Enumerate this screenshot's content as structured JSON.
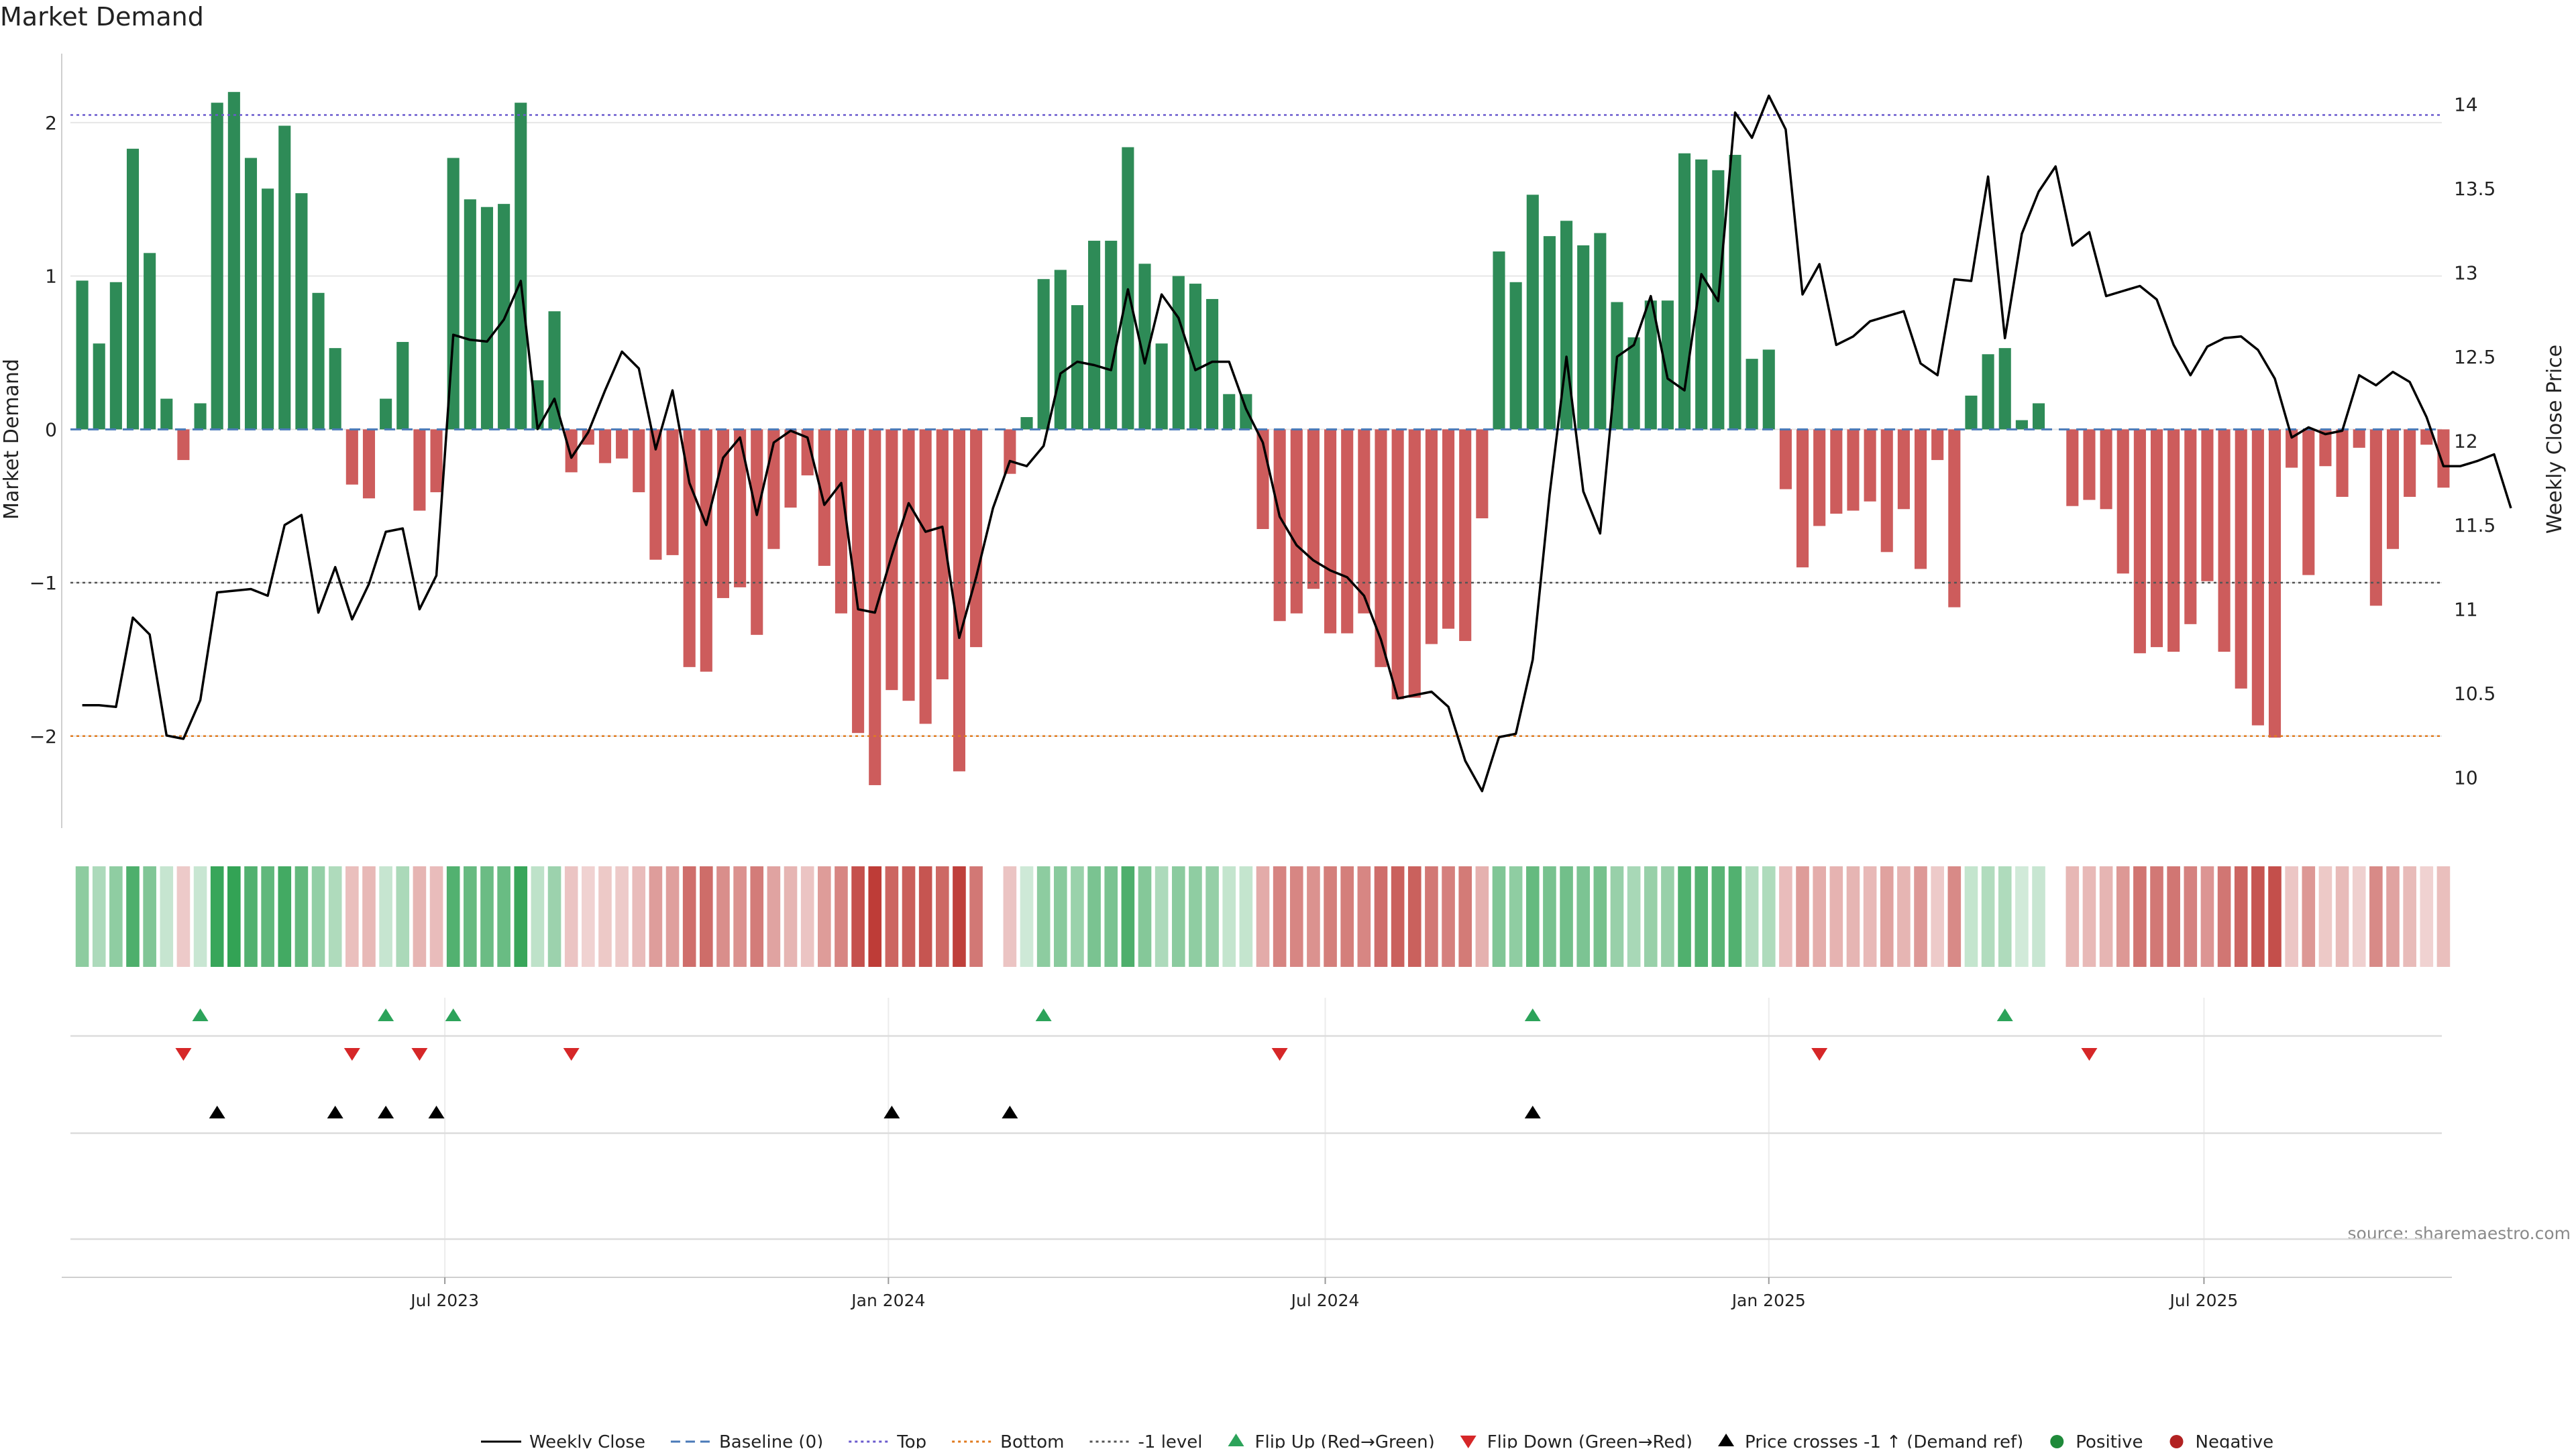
{
  "chart_data": {
    "type": "bar",
    "title": "Market Demand",
    "ylabel_left": "Market Demand",
    "ylabel_right": "Weekly Close Price",
    "ylim_left": [
      -2.6,
      2.45
    ],
    "ylim_right": [
      9.7,
      14.3
    ],
    "yticks_left": [
      {
        "v": 2,
        "label": "2"
      },
      {
        "v": 1,
        "label": "1"
      },
      {
        "v": 0,
        "label": "0"
      },
      {
        "v": -1,
        "label": "−1"
      },
      {
        "v": -2,
        "label": "−2"
      }
    ],
    "yticks_right": [
      {
        "v": 14,
        "label": "14"
      },
      {
        "v": 13.5,
        "label": "13.5"
      },
      {
        "v": 13,
        "label": "13"
      },
      {
        "v": 12.5,
        "label": "12.5"
      },
      {
        "v": 12,
        "label": "12"
      },
      {
        "v": 11.5,
        "label": "11.5"
      },
      {
        "v": 11,
        "label": "11"
      },
      {
        "v": 10.5,
        "label": "10.5"
      },
      {
        "v": 10,
        "label": "10"
      }
    ],
    "xticks": [
      {
        "week": 22,
        "label": "Jul 2023"
      },
      {
        "week": 48.3,
        "label": "Jan 2024"
      },
      {
        "week": 74.2,
        "label": "Jul 2024"
      },
      {
        "week": 100.5,
        "label": "Jan 2025"
      },
      {
        "week": 126.3,
        "label": "Jul 2025"
      }
    ],
    "reference_lines": {
      "top": 2.05,
      "bottom": -2.0,
      "minus_one": -1.0,
      "baseline": 0
    },
    "demand": [
      0.97,
      0.56,
      0.96,
      1.83,
      1.15,
      0.2,
      -0.2,
      0.17,
      2.13,
      2.2,
      1.77,
      1.57,
      1.98,
      1.54,
      0.89,
      0.53,
      -0.36,
      -0.45,
      0.2,
      0.57,
      -0.53,
      -0.41,
      1.77,
      1.5,
      1.45,
      1.47,
      2.13,
      0.32,
      0.77,
      -0.28,
      -0.1,
      -0.22,
      -0.19,
      -0.41,
      -0.85,
      -0.82,
      -1.55,
      -1.58,
      -1.1,
      -1.03,
      -1.34,
      -0.78,
      -0.51,
      -0.3,
      -0.89,
      -1.2,
      -1.98,
      -2.32,
      -1.7,
      -1.77,
      -1.92,
      -1.63,
      -2.23,
      -1.42,
      0.0,
      -0.29,
      0.08,
      0.98,
      1.04,
      0.81,
      1.23,
      1.23,
      1.84,
      1.08,
      0.56,
      1.0,
      0.95,
      0.85,
      0.23,
      0.23,
      -0.65,
      -1.25,
      -1.2,
      -1.04,
      -1.33,
      -1.33,
      -1.2,
      -1.55,
      -1.76,
      -1.75,
      -1.4,
      -1.3,
      -1.38,
      -0.58,
      1.16,
      0.96,
      1.53,
      1.26,
      1.36,
      1.2,
      1.28,
      0.83,
      0.6,
      0.84,
      0.84,
      1.8,
      1.76,
      1.69,
      1.79,
      0.46,
      0.52,
      -0.39,
      -0.9,
      -0.63,
      -0.55,
      -0.53,
      -0.47,
      -0.8,
      -0.52,
      -0.91,
      -0.2,
      -1.16,
      0.22,
      0.49,
      0.53,
      0.06,
      0.17,
      0.0,
      -0.5,
      -0.46,
      -0.52,
      -0.94,
      -1.46,
      -1.42,
      -1.45,
      -1.27,
      -0.99,
      -1.45,
      -1.69,
      -1.93,
      -2.01,
      -0.25,
      -0.95,
      -0.24,
      -0.44,
      -0.12,
      -1.15,
      -0.78,
      -0.44,
      -0.1,
      -0.38
    ],
    "weekly_close": [
      10.43,
      10.43,
      10.42,
      10.95,
      10.85,
      10.25,
      10.23,
      10.46,
      11.1,
      11.11,
      11.12,
      11.08,
      11.5,
      11.56,
      10.98,
      11.25,
      10.94,
      11.15,
      11.46,
      11.48,
      11.0,
      11.2,
      12.63,
      12.6,
      12.59,
      12.72,
      12.95,
      12.07,
      12.25,
      11.9,
      12.05,
      12.3,
      12.53,
      12.43,
      11.95,
      12.3,
      11.75,
      11.5,
      11.9,
      12.02,
      11.56,
      11.99,
      12.06,
      12.02,
      11.62,
      11.75,
      11.0,
      10.98,
      11.32,
      11.63,
      11.46,
      11.49,
      10.83,
      11.19,
      11.6,
      11.88,
      11.85,
      11.97,
      12.4,
      12.47,
      12.45,
      12.42,
      12.9,
      12.46,
      12.87,
      12.73,
      12.42,
      12.47,
      12.47,
      12.19,
      11.99,
      11.55,
      11.38,
      11.29,
      11.23,
      11.19,
      11.08,
      10.82,
      10.47,
      10.49,
      10.51,
      10.42,
      10.1,
      9.92,
      10.24,
      10.26,
      10.7,
      11.68,
      12.5,
      11.7,
      11.45,
      12.5,
      12.57,
      12.86,
      12.37,
      12.3,
      12.99,
      12.83,
      13.95,
      13.8,
      14.05,
      13.85,
      12.87,
      13.05,
      12.57,
      12.62,
      12.71,
      12.74,
      12.77,
      12.46,
      12.39,
      12.96,
      12.95,
      13.57,
      12.61,
      13.23,
      13.48,
      13.63,
      13.16,
      13.24,
      12.86,
      12.89,
      12.92,
      12.84,
      12.57,
      12.39,
      12.56,
      12.61,
      12.62,
      12.54,
      12.37,
      12.02,
      12.08,
      12.04,
      12.06,
      12.39,
      12.33,
      12.41,
      12.35,
      12.14,
      11.85,
      11.85,
      11.88,
      11.92,
      11.6
    ],
    "flip_up_weeks": [
      7,
      18,
      22,
      57,
      86,
      114
    ],
    "flip_down_weeks": [
      6,
      16,
      20,
      29,
      71,
      103,
      119
    ],
    "price_cross_weeks": [
      8,
      15,
      18,
      21,
      48,
      55,
      86
    ],
    "legend": [
      {
        "label": "Weekly Close",
        "type": "line",
        "color": "#000000"
      },
      {
        "label": "Baseline (0)",
        "type": "dashed",
        "color": "#4a7ab8"
      },
      {
        "label": "Top",
        "type": "dotted",
        "color": "#6a5acd"
      },
      {
        "label": "Bottom",
        "type": "dotted",
        "color": "#e07b1f"
      },
      {
        "label": "-1 level",
        "type": "dotted",
        "color": "#555555"
      },
      {
        "label": "Flip Up (Red→Green)",
        "type": "tri-up",
        "color": "#2ca35a"
      },
      {
        "label": "Flip Down (Green→Red)",
        "type": "tri-down",
        "color": "#d62728"
      },
      {
        "label": "Price crosses -1 ↑ (Demand ref)",
        "type": "tri-up",
        "color": "#000000"
      },
      {
        "label": "Positive",
        "type": "dot",
        "color": "#1f8a3a"
      },
      {
        "label": "Negative",
        "type": "dot",
        "color": "#b22222"
      }
    ],
    "source": "source: sharemaestro.com"
  },
  "colors": {
    "positive_bar": "#2e8b57",
    "negative_bar": "#cd5c5c",
    "heat_positive_rgb": "44,160,80",
    "heat_negative_rgb": "190,60,55",
    "grid": "#e6e6e6",
    "axis_text": "#222222"
  }
}
